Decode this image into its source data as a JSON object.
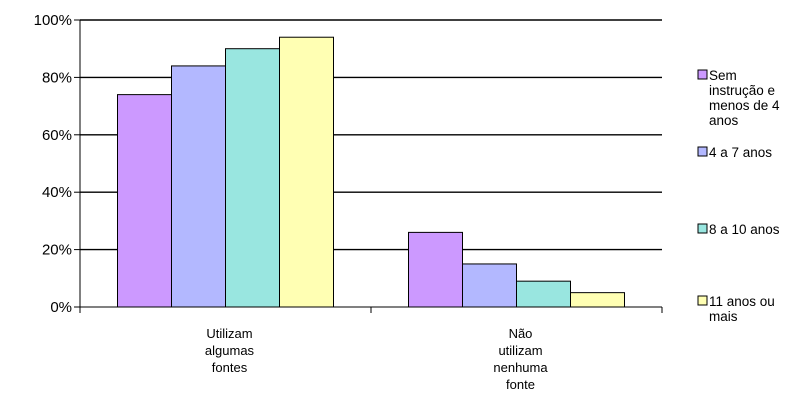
{
  "chart_data": {
    "type": "bar",
    "title": "",
    "xlabel": "",
    "ylabel": "",
    "ylim": [
      0,
      100
    ],
    "yticks": [
      "0%",
      "20%",
      "40%",
      "60%",
      "80%",
      "100%"
    ],
    "grid": true,
    "legend_position": "right",
    "categories": [
      [
        "Utilizam",
        "algumas",
        "fontes"
      ],
      [
        "Não",
        "utilizam",
        "nenhuma",
        "fonte"
      ]
    ],
    "series": [
      {
        "name": [
          "Sem",
          "instrução e",
          "menos de 4",
          "anos"
        ],
        "color": "#cc99ff",
        "values": [
          74,
          26
        ]
      },
      {
        "name": [
          "4 a 7 anos"
        ],
        "color": "#b3b8ff",
        "values": [
          84,
          15
        ]
      },
      {
        "name": [
          "8 a 10 anos"
        ],
        "color": "#99e6e0",
        "values": [
          90,
          9
        ]
      },
      {
        "name": [
          "11 anos ou",
          "mais"
        ],
        "color": "#ffffb3",
        "values": [
          94,
          5
        ]
      }
    ]
  }
}
